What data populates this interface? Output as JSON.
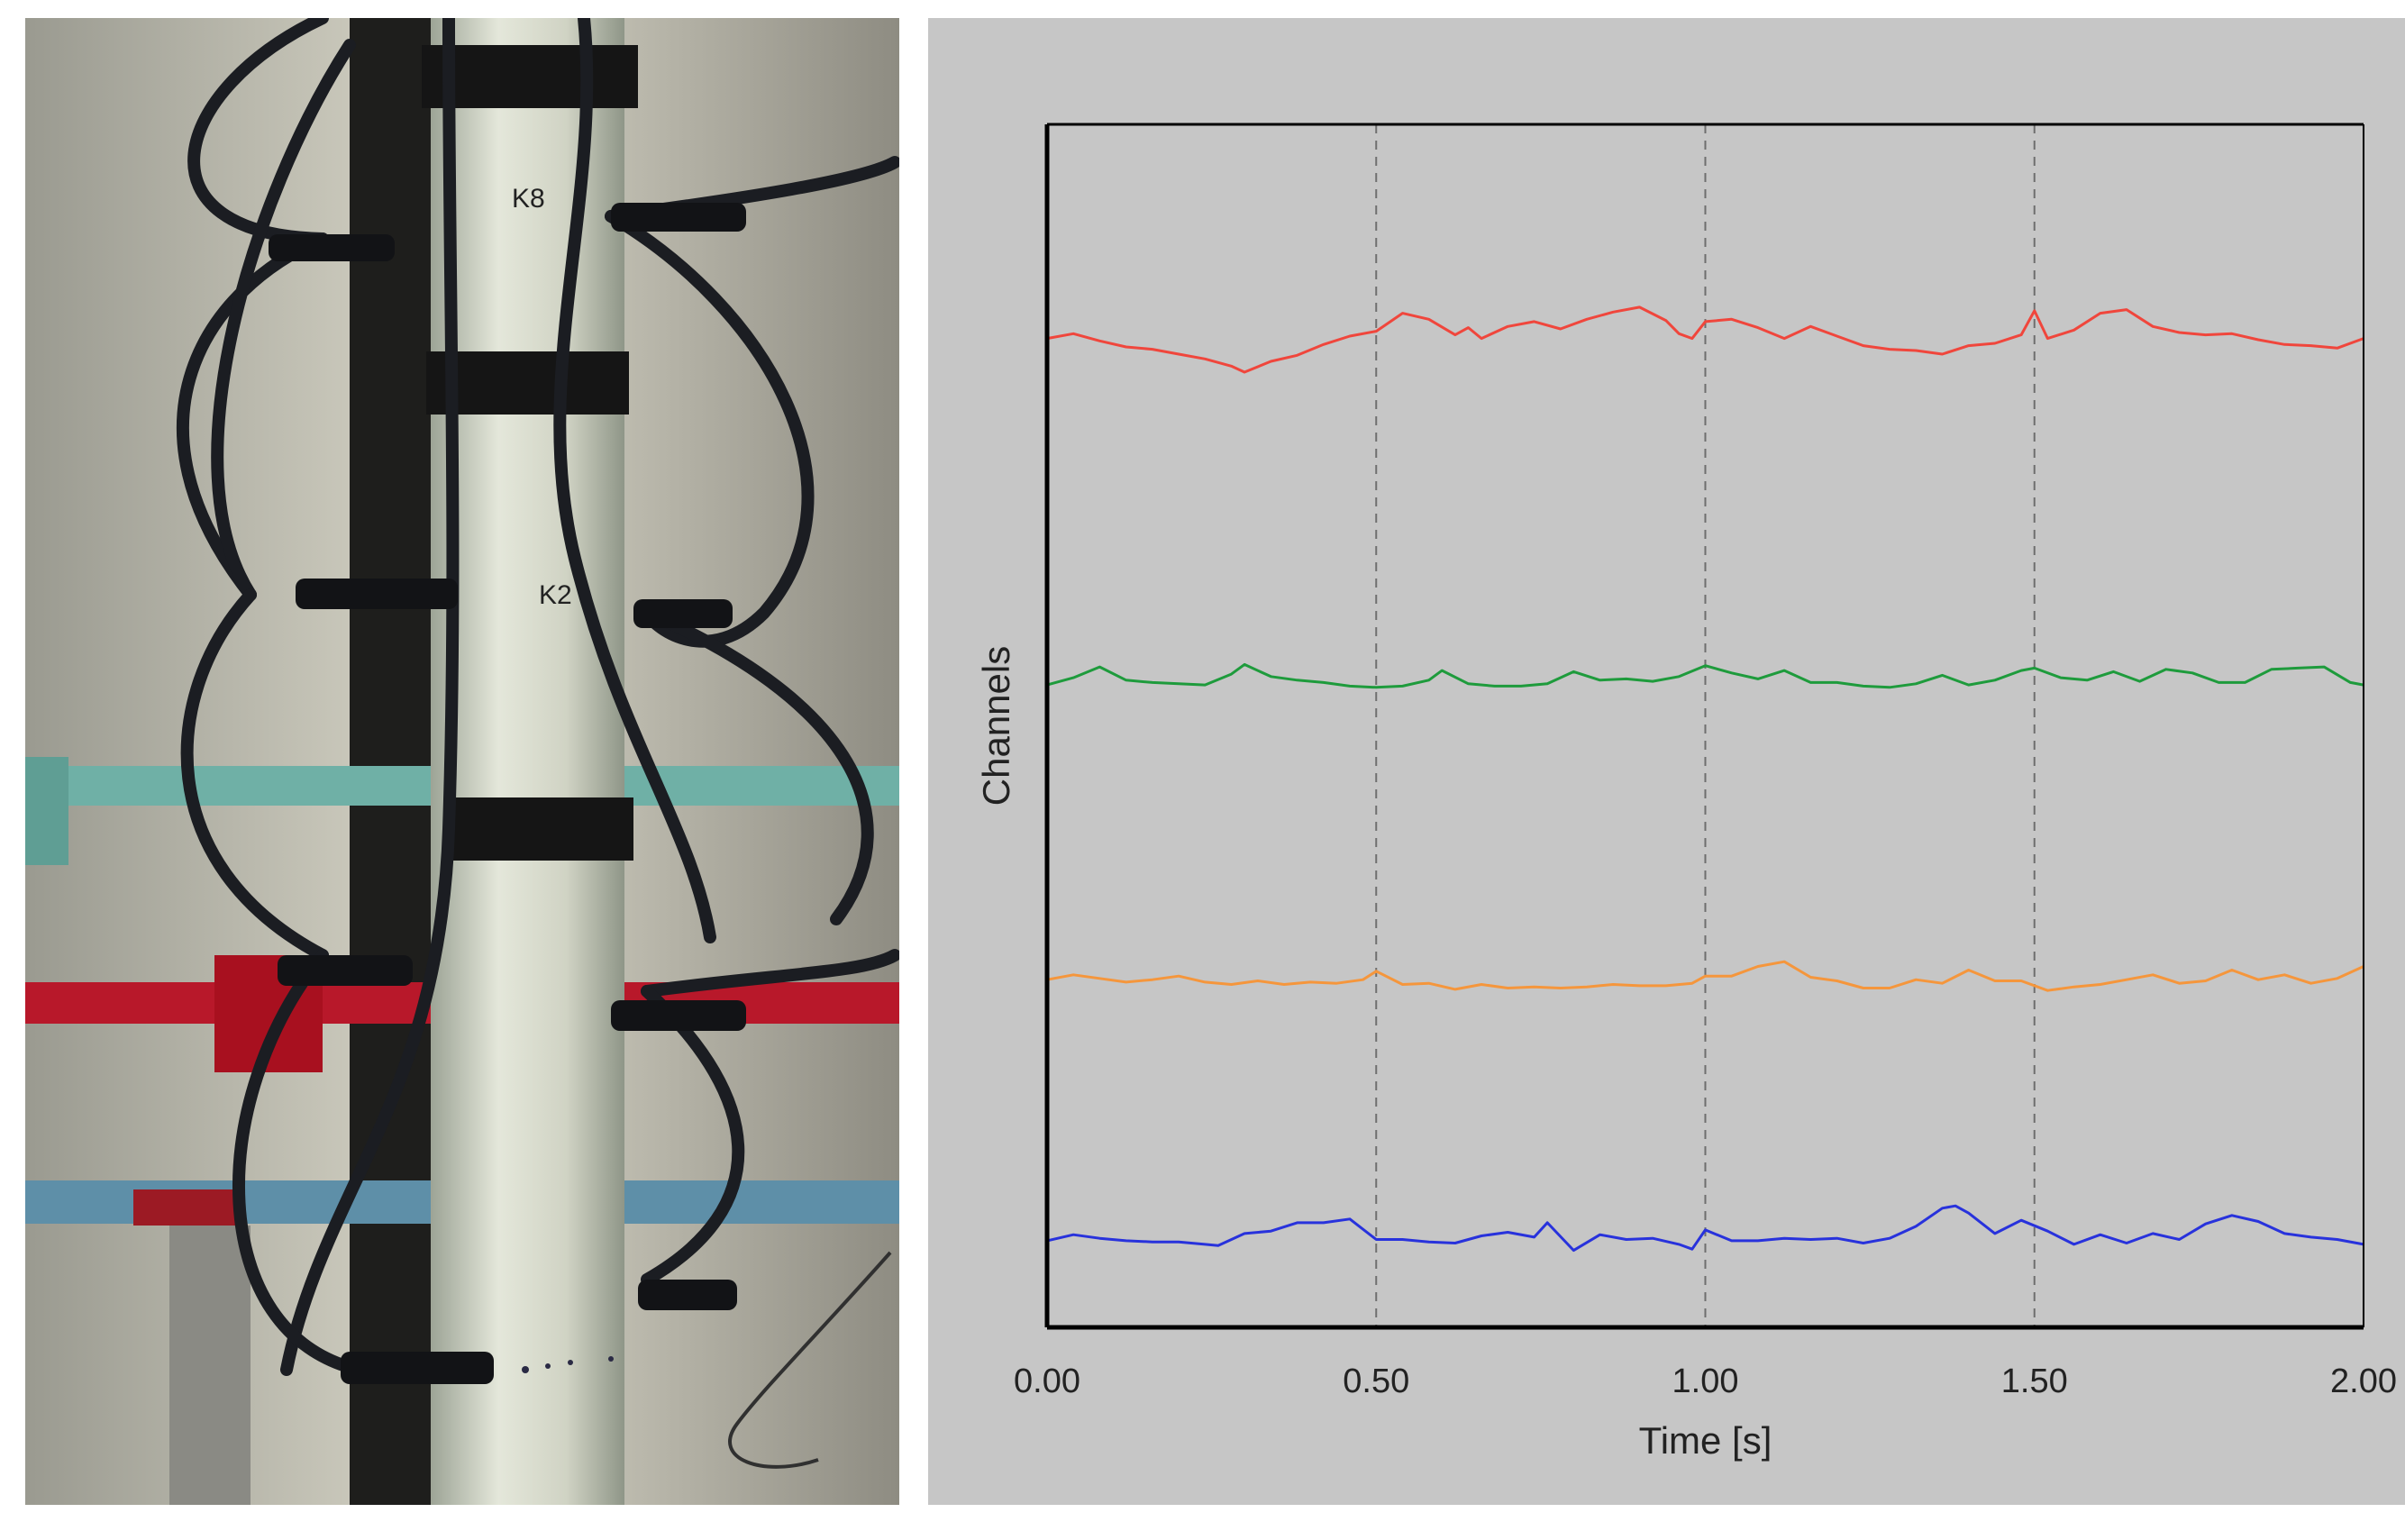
{
  "photo": {
    "description_icon": "sensor-pipe-photo",
    "labels": [
      "K8",
      "K2"
    ]
  },
  "colors": {
    "panel_bg": "#c6c6c6",
    "axis": "#000000",
    "grid": "#6e6e6e"
  },
  "chart_data": {
    "type": "line",
    "title": "",
    "xlabel": "Time [s]",
    "ylabel": "Channels",
    "xlim": [
      0,
      2.0
    ],
    "xticks": [
      0.0,
      0.5,
      1.0,
      1.5,
      2.0
    ],
    "xtick_labels": [
      "0.00",
      "0.50",
      "1.00",
      "1.50",
      "2.00"
    ],
    "ylim": [
      0,
      100
    ],
    "grid": "vertical dashed",
    "series": [
      {
        "color": "#f0463c",
        "x": [
          0.0,
          0.04,
          0.08,
          0.12,
          0.16,
          0.2,
          0.24,
          0.28,
          0.3,
          0.34,
          0.38,
          0.42,
          0.46,
          0.5,
          0.54,
          0.58,
          0.62,
          0.64,
          0.66,
          0.7,
          0.74,
          0.78,
          0.82,
          0.86,
          0.9,
          0.94,
          0.96,
          0.98,
          1.0,
          1.04,
          1.08,
          1.12,
          1.16,
          1.2,
          1.24,
          1.28,
          1.32,
          1.36,
          1.4,
          1.44,
          1.48,
          1.5,
          1.52,
          1.56,
          1.6,
          1.64,
          1.68,
          1.72,
          1.76,
          1.8,
          1.84,
          1.88,
          1.92,
          1.96,
          2.0
        ],
        "y": [
          82.2,
          82.6,
          82.0,
          81.5,
          81.3,
          80.9,
          80.5,
          79.9,
          79.4,
          80.3,
          80.8,
          81.7,
          82.4,
          82.8,
          84.3,
          83.8,
          82.5,
          83.1,
          82.2,
          83.2,
          83.6,
          83.0,
          83.8,
          84.4,
          84.8,
          83.7,
          82.6,
          82.2,
          83.6,
          83.8,
          83.1,
          82.2,
          83.2,
          82.4,
          81.6,
          81.3,
          81.2,
          80.9,
          81.6,
          81.8,
          82.5,
          84.5,
          82.2,
          82.9,
          84.3,
          84.6,
          83.2,
          82.7,
          82.5,
          82.6,
          82.1,
          81.7,
          81.6,
          81.4,
          82.2
        ]
      },
      {
        "color": "#1e9b3c",
        "x": [
          0.0,
          0.04,
          0.08,
          0.12,
          0.16,
          0.2,
          0.24,
          0.28,
          0.3,
          0.34,
          0.38,
          0.42,
          0.46,
          0.5,
          0.54,
          0.58,
          0.6,
          0.64,
          0.68,
          0.72,
          0.76,
          0.8,
          0.84,
          0.88,
          0.92,
          0.96,
          1.0,
          1.04,
          1.08,
          1.12,
          1.16,
          1.2,
          1.24,
          1.28,
          1.32,
          1.36,
          1.4,
          1.44,
          1.48,
          1.5,
          1.54,
          1.58,
          1.62,
          1.66,
          1.7,
          1.74,
          1.78,
          1.82,
          1.86,
          1.9,
          1.94,
          1.98,
          2.0
        ],
        "y": [
          53.4,
          54.0,
          54.9,
          53.8,
          53.6,
          53.5,
          53.4,
          54.3,
          55.1,
          54.1,
          53.8,
          53.6,
          53.3,
          53.2,
          53.3,
          53.8,
          54.6,
          53.5,
          53.3,
          53.3,
          53.5,
          54.5,
          53.8,
          53.9,
          53.7,
          54.1,
          55.0,
          54.4,
          53.9,
          54.6,
          53.6,
          53.6,
          53.3,
          53.2,
          53.5,
          54.2,
          53.4,
          53.8,
          54.6,
          54.8,
          54.0,
          53.8,
          54.5,
          53.7,
          54.7,
          54.4,
          53.6,
          53.6,
          54.7,
          54.8,
          54.9,
          53.6,
          53.4
        ]
      },
      {
        "color": "#f5963c",
        "x": [
          0.0,
          0.04,
          0.08,
          0.12,
          0.16,
          0.2,
          0.24,
          0.28,
          0.32,
          0.36,
          0.4,
          0.44,
          0.48,
          0.5,
          0.54,
          0.58,
          0.62,
          0.66,
          0.7,
          0.74,
          0.78,
          0.82,
          0.86,
          0.9,
          0.94,
          0.98,
          1.0,
          1.04,
          1.08,
          1.12,
          1.16,
          1.2,
          1.24,
          1.28,
          1.32,
          1.36,
          1.4,
          1.44,
          1.48,
          1.52,
          1.56,
          1.6,
          1.64,
          1.68,
          1.72,
          1.76,
          1.8,
          1.84,
          1.88,
          1.92,
          1.96,
          2.0
        ],
        "y": [
          28.9,
          29.3,
          29.0,
          28.7,
          28.9,
          29.2,
          28.7,
          28.5,
          28.8,
          28.5,
          28.7,
          28.6,
          28.9,
          29.6,
          28.5,
          28.6,
          28.1,
          28.5,
          28.2,
          28.3,
          28.2,
          28.3,
          28.5,
          28.4,
          28.4,
          28.6,
          29.2,
          29.2,
          30.0,
          30.4,
          29.1,
          28.8,
          28.2,
          28.2,
          28.9,
          28.6,
          29.7,
          28.8,
          28.8,
          28.0,
          28.3,
          28.5,
          28.9,
          29.3,
          28.6,
          28.8,
          29.7,
          28.9,
          29.3,
          28.6,
          29.0,
          30.0
        ]
      },
      {
        "color": "#2832dc",
        "x": [
          0.0,
          0.04,
          0.08,
          0.12,
          0.16,
          0.2,
          0.24,
          0.26,
          0.3,
          0.34,
          0.38,
          0.42,
          0.46,
          0.5,
          0.54,
          0.58,
          0.62,
          0.66,
          0.7,
          0.74,
          0.76,
          0.8,
          0.84,
          0.88,
          0.92,
          0.96,
          0.98,
          1.0,
          1.04,
          1.08,
          1.12,
          1.16,
          1.2,
          1.24,
          1.28,
          1.32,
          1.36,
          1.38,
          1.4,
          1.44,
          1.48,
          1.52,
          1.56,
          1.6,
          1.64,
          1.68,
          1.72,
          1.76,
          1.8,
          1.84,
          1.88,
          1.92,
          1.96,
          2.0
        ],
        "y": [
          7.2,
          7.7,
          7.4,
          7.2,
          7.1,
          7.1,
          6.9,
          6.8,
          7.8,
          8.0,
          8.7,
          8.7,
          9.0,
          7.3,
          7.3,
          7.1,
          7.0,
          7.6,
          7.9,
          7.5,
          8.7,
          6.4,
          7.7,
          7.3,
          7.4,
          6.9,
          6.5,
          8.1,
          7.2,
          7.2,
          7.4,
          7.3,
          7.4,
          7.0,
          7.4,
          8.4,
          9.9,
          10.1,
          9.5,
          7.8,
          8.9,
          8.0,
          6.9,
          7.7,
          7.0,
          7.8,
          7.3,
          8.6,
          9.3,
          8.8,
          7.8,
          7.5,
          7.3,
          6.9
        ]
      }
    ]
  }
}
